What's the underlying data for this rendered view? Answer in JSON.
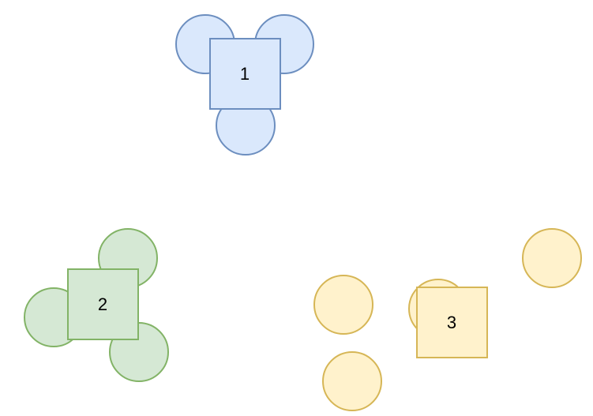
{
  "groups": [
    {
      "label": "1",
      "fill": "#dae8fc",
      "stroke": "#6c8ebf"
    },
    {
      "label": "2",
      "fill": "#d5e8d4",
      "stroke": "#82b366"
    },
    {
      "label": "3",
      "fill": "#fff2cc",
      "stroke": "#d6b656"
    }
  ]
}
